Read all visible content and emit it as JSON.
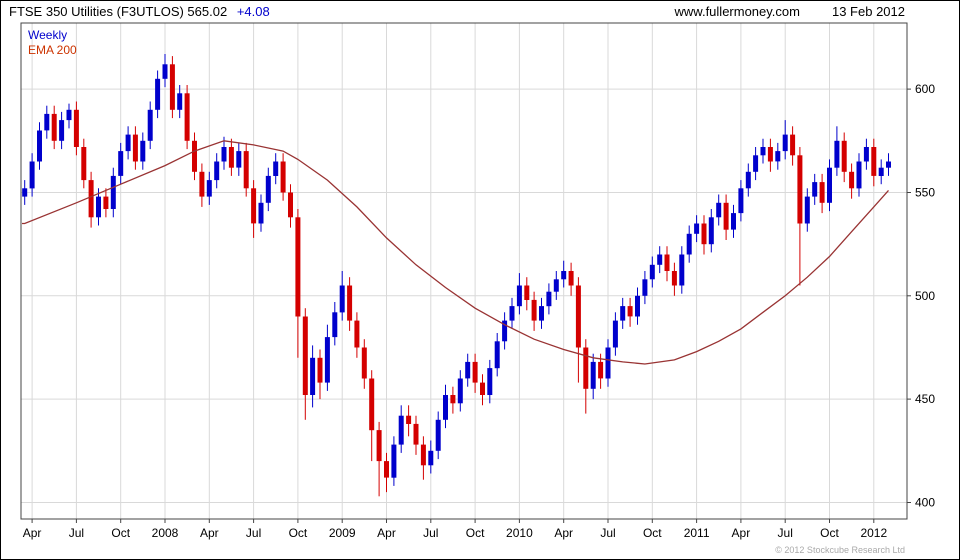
{
  "header": {
    "title": "FTSE 350 Utilities (F3UTLOS) 565.02",
    "change": "+4.08",
    "website": "www.fullermoney.com",
    "date": "13 Feb 2012"
  },
  "legend": {
    "weekly": "Weekly",
    "ema": "EMA 200"
  },
  "footer": {
    "copyright": "© 2012 Stockcube Research Ltd"
  },
  "colors": {
    "up": "#0000cc",
    "down": "#d40000",
    "ema_line": "#993333",
    "ema_label": "#cc3300",
    "grid": "#d9d9d9",
    "axis": "#444444",
    "label": "#000000",
    "change": "#0000cc",
    "copyright": "#aaaaaa"
  },
  "chart_data": {
    "type": "candlestick",
    "title": "FTSE 350 Utilities (F3UTLOS)",
    "frequency": "Weekly",
    "overlay": "EMA 200",
    "last_price": 565.02,
    "change": 4.08,
    "date": "13 Feb 2012",
    "ylim": [
      392,
      632
    ],
    "y_ticks": [
      400,
      450,
      500,
      550,
      600
    ],
    "slots": 120,
    "x_ticks": [
      [
        1,
        "Apr"
      ],
      [
        7,
        "Jul"
      ],
      [
        13,
        "Oct"
      ],
      [
        19,
        "2008"
      ],
      [
        25,
        "Apr"
      ],
      [
        31,
        "Jul"
      ],
      [
        37,
        "Oct"
      ],
      [
        43,
        "2009"
      ],
      [
        49,
        "Apr"
      ],
      [
        55,
        "Jul"
      ],
      [
        61,
        "Oct"
      ],
      [
        67,
        "2010"
      ],
      [
        73,
        "Apr"
      ],
      [
        79,
        "Jul"
      ],
      [
        85,
        "Oct"
      ],
      [
        91,
        "2011"
      ],
      [
        97,
        "Apr"
      ],
      [
        103,
        "Jul"
      ],
      [
        109,
        "Oct"
      ],
      [
        115,
        "2012"
      ]
    ],
    "candles": [
      [
        548,
        556,
        544,
        552
      ],
      [
        552,
        569,
        548,
        565
      ],
      [
        565,
        584,
        561,
        580
      ],
      [
        580,
        592,
        576,
        588
      ],
      [
        588,
        592,
        571,
        575
      ],
      [
        575,
        589,
        571,
        585
      ],
      [
        585,
        593,
        581,
        590
      ],
      [
        590,
        594,
        568,
        572
      ],
      [
        572,
        576,
        552,
        556
      ],
      [
        556,
        560,
        533,
        538
      ],
      [
        538,
        552,
        534,
        548
      ],
      [
        548,
        552,
        538,
        542
      ],
      [
        542,
        562,
        538,
        558
      ],
      [
        558,
        574,
        554,
        570
      ],
      [
        570,
        582,
        566,
        578
      ],
      [
        578,
        582,
        561,
        565
      ],
      [
        565,
        579,
        561,
        575
      ],
      [
        575,
        594,
        571,
        590
      ],
      [
        590,
        609,
        586,
        605
      ],
      [
        605,
        617,
        601,
        612
      ],
      [
        612,
        616,
        586,
        590
      ],
      [
        590,
        602,
        586,
        598
      ],
      [
        598,
        602,
        571,
        575
      ],
      [
        575,
        579,
        556,
        560
      ],
      [
        560,
        564,
        543,
        548
      ],
      [
        548,
        560,
        544,
        556
      ],
      [
        556,
        569,
        552,
        565
      ],
      [
        565,
        577,
        561,
        572
      ],
      [
        572,
        576,
        558,
        562
      ],
      [
        562,
        574,
        558,
        570
      ],
      [
        570,
        574,
        548,
        552
      ],
      [
        552,
        556,
        528,
        535
      ],
      [
        535,
        549,
        531,
        545
      ],
      [
        545,
        562,
        541,
        558
      ],
      [
        558,
        569,
        554,
        565
      ],
      [
        565,
        569,
        546,
        550
      ],
      [
        550,
        554,
        533,
        538
      ],
      [
        538,
        542,
        470,
        490
      ],
      [
        490,
        494,
        440,
        452
      ],
      [
        452,
        476,
        446,
        470
      ],
      [
        470,
        474,
        450,
        458
      ],
      [
        458,
        486,
        454,
        480
      ],
      [
        480,
        497,
        476,
        492
      ],
      [
        492,
        512,
        488,
        505
      ],
      [
        505,
        509,
        483,
        488
      ],
      [
        488,
        492,
        470,
        475
      ],
      [
        475,
        479,
        455,
        460
      ],
      [
        460,
        464,
        420,
        435
      ],
      [
        435,
        439,
        403,
        420
      ],
      [
        420,
        424,
        405,
        412
      ],
      [
        412,
        432,
        408,
        428
      ],
      [
        428,
        447,
        424,
        442
      ],
      [
        442,
        447,
        432,
        438
      ],
      [
        438,
        442,
        423,
        428
      ],
      [
        428,
        432,
        411,
        418
      ],
      [
        418,
        430,
        414,
        425
      ],
      [
        425,
        444,
        421,
        440
      ],
      [
        440,
        457,
        436,
        452
      ],
      [
        452,
        456,
        443,
        448
      ],
      [
        448,
        464,
        444,
        460
      ],
      [
        460,
        472,
        456,
        468
      ],
      [
        468,
        472,
        453,
        458
      ],
      [
        458,
        462,
        447,
        452
      ],
      [
        452,
        469,
        448,
        465
      ],
      [
        465,
        482,
        461,
        478
      ],
      [
        478,
        492,
        474,
        488
      ],
      [
        488,
        499,
        484,
        495
      ],
      [
        495,
        511,
        491,
        505
      ],
      [
        505,
        509,
        493,
        498
      ],
      [
        498,
        502,
        483,
        488
      ],
      [
        488,
        499,
        484,
        495
      ],
      [
        495,
        506,
        491,
        502
      ],
      [
        502,
        512,
        498,
        508
      ],
      [
        508,
        517,
        504,
        512
      ],
      [
        512,
        516,
        500,
        505
      ],
      [
        505,
        509,
        458,
        475
      ],
      [
        475,
        479,
        443,
        455
      ],
      [
        455,
        472,
        450,
        468
      ],
      [
        468,
        472,
        455,
        460
      ],
      [
        460,
        479,
        456,
        475
      ],
      [
        475,
        492,
        471,
        488
      ],
      [
        488,
        499,
        484,
        495
      ],
      [
        495,
        499,
        485,
        490
      ],
      [
        490,
        504,
        486,
        500
      ],
      [
        500,
        512,
        496,
        508
      ],
      [
        508,
        519,
        504,
        515
      ],
      [
        515,
        524,
        511,
        520
      ],
      [
        520,
        524,
        507,
        512
      ],
      [
        512,
        516,
        500,
        505
      ],
      [
        505,
        524,
        501,
        520
      ],
      [
        520,
        534,
        516,
        530
      ],
      [
        530,
        539,
        526,
        535
      ],
      [
        535,
        539,
        520,
        525
      ],
      [
        525,
        542,
        521,
        538
      ],
      [
        538,
        549,
        534,
        545
      ],
      [
        545,
        549,
        527,
        532
      ],
      [
        532,
        544,
        528,
        540
      ],
      [
        540,
        556,
        536,
        552
      ],
      [
        552,
        564,
        548,
        560
      ],
      [
        560,
        572,
        556,
        568
      ],
      [
        568,
        576,
        564,
        572
      ],
      [
        572,
        576,
        560,
        565
      ],
      [
        565,
        574,
        561,
        570
      ],
      [
        570,
        585,
        566,
        578
      ],
      [
        578,
        582,
        563,
        568
      ],
      [
        568,
        572,
        505,
        535
      ],
      [
        535,
        552,
        531,
        548
      ],
      [
        548,
        559,
        544,
        555
      ],
      [
        555,
        559,
        540,
        545
      ],
      [
        545,
        566,
        541,
        562
      ],
      [
        562,
        582,
        558,
        575
      ],
      [
        575,
        579,
        555,
        560
      ],
      [
        560,
        564,
        547,
        552
      ],
      [
        552,
        569,
        548,
        565
      ],
      [
        565,
        576,
        561,
        572
      ],
      [
        572,
        576,
        553,
        558
      ],
      [
        558,
        566,
        554,
        562
      ],
      [
        562,
        569,
        558,
        565
      ]
    ],
    "ema200_points": [
      [
        0,
        535
      ],
      [
        7,
        545
      ],
      [
        13,
        554
      ],
      [
        19,
        563
      ],
      [
        23,
        570
      ],
      [
        27,
        575
      ],
      [
        31,
        573
      ],
      [
        35,
        570
      ],
      [
        37,
        566
      ],
      [
        41,
        556
      ],
      [
        45,
        543
      ],
      [
        49,
        528
      ],
      [
        53,
        515
      ],
      [
        57,
        504
      ],
      [
        61,
        494
      ],
      [
        65,
        486
      ],
      [
        69,
        479
      ],
      [
        73,
        474
      ],
      [
        77,
        470
      ],
      [
        81,
        468
      ],
      [
        84,
        467
      ],
      [
        88,
        469
      ],
      [
        91,
        473
      ],
      [
        94,
        478
      ],
      [
        97,
        484
      ],
      [
        100,
        492
      ],
      [
        103,
        500
      ],
      [
        106,
        509
      ],
      [
        109,
        519
      ],
      [
        112,
        531
      ],
      [
        115,
        543
      ],
      [
        117,
        551
      ]
    ]
  }
}
